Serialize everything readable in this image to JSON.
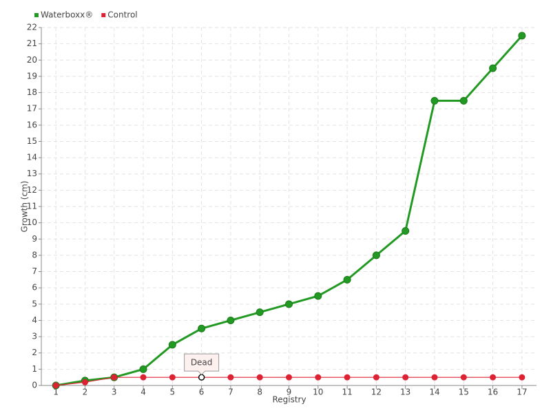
{
  "chart_data": {
    "type": "line",
    "x_label": "Registry",
    "y_label": "Growth (cm)",
    "categories": [
      "1",
      "2",
      "3",
      "4",
      "5",
      "6",
      "7",
      "8",
      "9",
      "10",
      "11",
      "12",
      "13",
      "14",
      "15",
      "16",
      "17"
    ],
    "series": [
      {
        "name": "Waterboxx®",
        "color": "#229922",
        "values": [
          0,
          0.3,
          0.5,
          1,
          2.5,
          3.5,
          4,
          4.5,
          5,
          5.5,
          6.5,
          8,
          9.5,
          17.5,
          17.5,
          19.5,
          21.5
        ]
      },
      {
        "name": "Control",
        "color": "#dd2233",
        "values": [
          0,
          0.2,
          0.5,
          0.5,
          0.5,
          0.5,
          0.5,
          0.5,
          0.5,
          0.5,
          0.5,
          0.5,
          0.5,
          0.5,
          0.5,
          0.5,
          0.5
        ]
      }
    ],
    "annotation": {
      "text": "Dead",
      "series": "Control",
      "category": "6"
    },
    "ylim": [
      0,
      22
    ],
    "yticks": [
      0,
      1,
      2,
      3,
      4,
      5,
      6,
      7,
      8,
      9,
      10,
      11,
      12,
      13,
      14,
      15,
      16,
      17,
      18,
      19,
      20,
      21,
      22
    ],
    "grid": true,
    "legend": "top-left"
  }
}
